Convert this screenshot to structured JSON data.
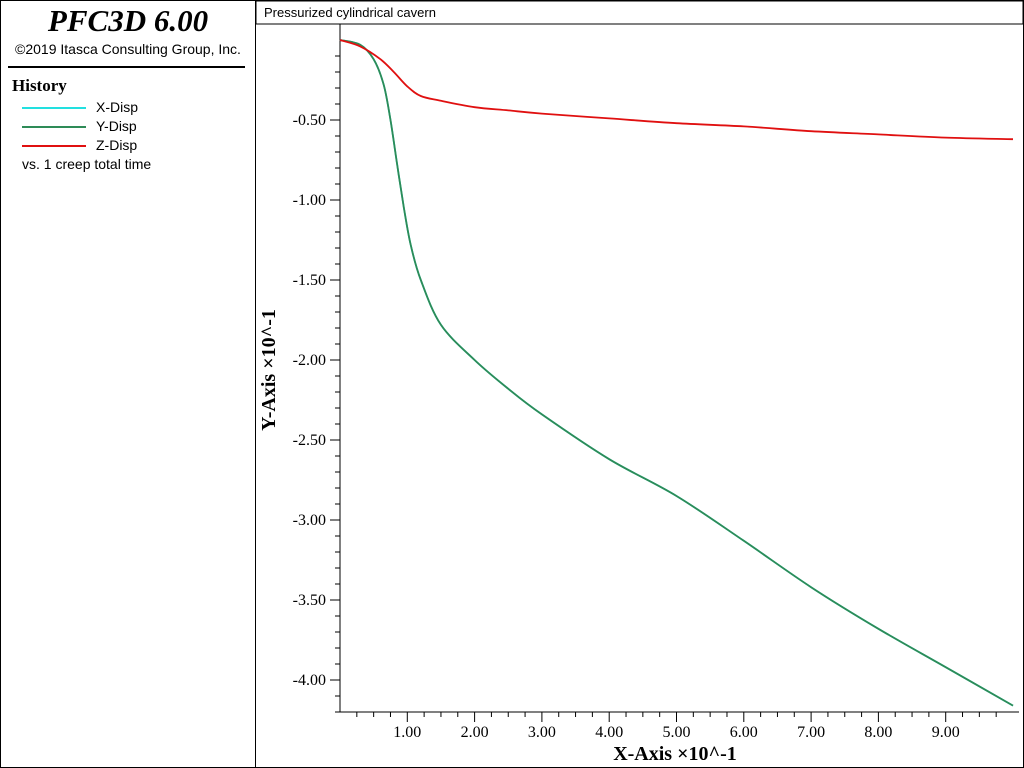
{
  "app": {
    "title": "PFC3D 6.00",
    "copyright": "©2019 Itasca Consulting Group, Inc."
  },
  "history_panel": {
    "heading": "History",
    "legend": [
      {
        "label": "X-Disp",
        "color": "#22e0e0"
      },
      {
        "label": "Y-Disp",
        "color": "#2e8b57"
      },
      {
        "label": "Z-Disp",
        "color": "#e01010"
      }
    ],
    "note": "vs. 1 creep total time"
  },
  "chart_data": {
    "type": "line",
    "title": "Pressurized cylindrical cavern",
    "xlabel": "X-Axis ×10^-1",
    "ylabel": "Y-Axis ×10^-1",
    "xlim": [
      0,
      10
    ],
    "ylim": [
      -4.2,
      0.05
    ],
    "x_ticks": [
      1.0,
      2.0,
      3.0,
      4.0,
      5.0,
      6.0,
      7.0,
      8.0,
      9.0
    ],
    "x_tick_labels": [
      "1.00",
      "2.00",
      "3.00",
      "4.00",
      "5.00",
      "6.00",
      "7.00",
      "8.00",
      "9.00"
    ],
    "y_ticks": [
      -0.5,
      -1.0,
      -1.5,
      -2.0,
      -2.5,
      -3.0,
      -3.5,
      -4.0
    ],
    "y_tick_labels": [
      "-0.50",
      "-1.00",
      "-1.50",
      "-2.00",
      "-2.50",
      "-3.00",
      "-3.50",
      "-4.00"
    ],
    "grid": false,
    "series": [
      {
        "name": "X-Disp",
        "color": "#22e0e0",
        "points": [
          [
            0,
            0
          ],
          [
            0.3,
            -0.03
          ],
          [
            0.5,
            -0.12
          ],
          [
            0.65,
            -0.28
          ],
          [
            0.75,
            -0.5
          ],
          [
            0.85,
            -0.78
          ],
          [
            0.95,
            -1.05
          ],
          [
            1.05,
            -1.28
          ],
          [
            1.2,
            -1.5
          ],
          [
            1.5,
            -1.78
          ],
          [
            2,
            -2.0
          ],
          [
            2.5,
            -2.18
          ],
          [
            3,
            -2.34
          ],
          [
            4,
            -2.62
          ],
          [
            5,
            -2.85
          ],
          [
            6,
            -3.13
          ],
          [
            7,
            -3.42
          ],
          [
            8,
            -3.68
          ],
          [
            9,
            -3.92
          ],
          [
            10,
            -4.16
          ]
        ]
      },
      {
        "name": "Y-Disp",
        "color": "#2e8b57",
        "points": [
          [
            0,
            0
          ],
          [
            0.3,
            -0.03
          ],
          [
            0.5,
            -0.12
          ],
          [
            0.65,
            -0.28
          ],
          [
            0.75,
            -0.5
          ],
          [
            0.85,
            -0.78
          ],
          [
            0.95,
            -1.05
          ],
          [
            1.05,
            -1.28
          ],
          [
            1.2,
            -1.5
          ],
          [
            1.5,
            -1.78
          ],
          [
            2,
            -2.0
          ],
          [
            2.5,
            -2.18
          ],
          [
            3,
            -2.34
          ],
          [
            4,
            -2.62
          ],
          [
            5,
            -2.85
          ],
          [
            6,
            -3.13
          ],
          [
            7,
            -3.42
          ],
          [
            8,
            -3.68
          ],
          [
            9,
            -3.92
          ],
          [
            10,
            -4.16
          ]
        ]
      },
      {
        "name": "Z-Disp",
        "color": "#e01010",
        "points": [
          [
            0,
            0
          ],
          [
            0.3,
            -0.04
          ],
          [
            0.6,
            -0.12
          ],
          [
            0.8,
            -0.2
          ],
          [
            1.0,
            -0.29
          ],
          [
            1.2,
            -0.35
          ],
          [
            1.5,
            -0.38
          ],
          [
            2,
            -0.42
          ],
          [
            2.5,
            -0.44
          ],
          [
            3,
            -0.46
          ],
          [
            4,
            -0.49
          ],
          [
            5,
            -0.52
          ],
          [
            6,
            -0.54
          ],
          [
            7,
            -0.57
          ],
          [
            8,
            -0.59
          ],
          [
            9,
            -0.61
          ],
          [
            10,
            -0.62
          ]
        ]
      }
    ]
  }
}
